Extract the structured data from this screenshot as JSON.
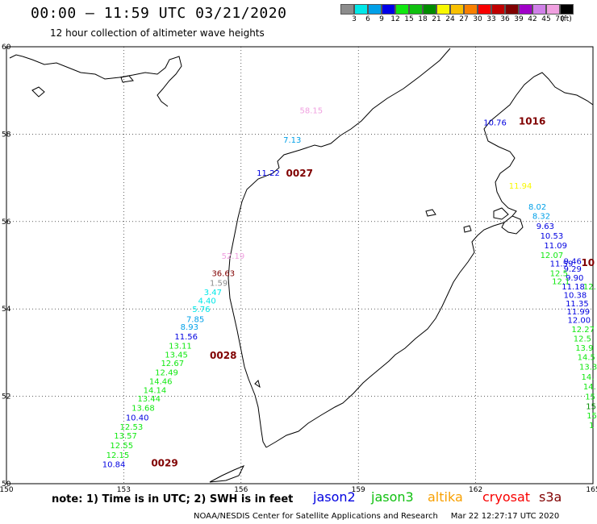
{
  "header": {
    "title": "00:00 – 11:59 UTC 03/21/2020",
    "subtitle": "12 hour collection of altimeter wave heights"
  },
  "legend": {
    "swatches": [
      {
        "color": "#8c8c8c",
        "label": "3"
      },
      {
        "color": "#00e8e8",
        "label": "6"
      },
      {
        "color": "#00a0e8",
        "label": "9"
      },
      {
        "color": "#0000e8",
        "label": "12"
      },
      {
        "color": "#10e810",
        "label": "15"
      },
      {
        "color": "#10c010",
        "label": "18"
      },
      {
        "color": "#008c00",
        "label": "21"
      },
      {
        "color": "#f8f800",
        "label": "24"
      },
      {
        "color": "#f8c000",
        "label": "27"
      },
      {
        "color": "#f88000",
        "label": "30"
      },
      {
        "color": "#f80000",
        "label": "33"
      },
      {
        "color": "#c00000",
        "label": "36"
      },
      {
        "color": "#800000",
        "label": "39"
      },
      {
        "color": "#a000c8",
        "label": "42"
      },
      {
        "color": "#d080e8",
        "label": "45"
      },
      {
        "color": "#f0a0e0",
        "label": "70"
      },
      {
        "color": "#000000",
        "label": "(ft)"
      }
    ]
  },
  "map": {
    "lat_labels": [
      "60",
      "58",
      "56",
      "54",
      "52",
      "50"
    ],
    "lon_labels": [
      "150",
      "153",
      "156",
      "159",
      "162",
      "165"
    ],
    "tracks": [
      {
        "id": "0029",
        "color": "#800000",
        "times": [
          {
            "text": "0028",
            "lon": 156.0,
            "lat": 52.77
          },
          {
            "text": "0029",
            "lon": 153.8,
            "lat": 50.1
          }
        ]
      },
      {
        "id": "jason2",
        "color": "#0000e0",
        "times": []
      }
    ],
    "labels": [
      {
        "text": "58.15",
        "lon": 157.5,
        "lat": 58.48,
        "color": "#f0a0e0"
      },
      {
        "text": "7.13",
        "lon": 157.08,
        "lat": 57.8,
        "color": "#00a0e8"
      },
      {
        "text": "11.22",
        "lon": 156.4,
        "lat": 57.05,
        "color": "#0000e0"
      },
      {
        "text": "0027",
        "lon": 157.15,
        "lat": 57.03,
        "color": "#800000",
        "bold": true,
        "big": true
      },
      {
        "text": "52.19",
        "lon": 155.5,
        "lat": 55.15,
        "color": "#f0a0e0"
      },
      {
        "text": "36.63",
        "lon": 155.25,
        "lat": 54.75,
        "color": "#800000"
      },
      {
        "text": "1.59",
        "lon": 155.2,
        "lat": 54.53,
        "color": "#8c8c8c"
      },
      {
        "text": "3.47",
        "lon": 155.05,
        "lat": 54.32,
        "color": "#00e8e8"
      },
      {
        "text": "4.40",
        "lon": 154.9,
        "lat": 54.12,
        "color": "#00e8e8"
      },
      {
        "text": "5.76",
        "lon": 154.75,
        "lat": 53.93,
        "color": "#00e8e8"
      },
      {
        "text": "7.85",
        "lon": 154.6,
        "lat": 53.7,
        "color": "#00a0e8"
      },
      {
        "text": "8.93",
        "lon": 154.45,
        "lat": 53.52,
        "color": "#00a0e8"
      },
      {
        "text": "11.56",
        "lon": 154.3,
        "lat": 53.3,
        "color": "#0000e0"
      },
      {
        "text": "13.11",
        "lon": 154.15,
        "lat": 53.09,
        "color": "#10e810"
      },
      {
        "text": "13.45",
        "lon": 154.05,
        "lat": 52.89,
        "color": "#10e810"
      },
      {
        "text": "0028",
        "lon": 155.2,
        "lat": 52.86,
        "color": "#800000",
        "bold": true,
        "big": true
      },
      {
        "text": "12.67",
        "lon": 153.95,
        "lat": 52.69,
        "color": "#10e810"
      },
      {
        "text": "12.49",
        "lon": 153.8,
        "lat": 52.48,
        "color": "#10e810"
      },
      {
        "text": "14.46",
        "lon": 153.65,
        "lat": 52.28,
        "color": "#10e810"
      },
      {
        "text": "14.14",
        "lon": 153.5,
        "lat": 52.08,
        "color": "#10e810"
      },
      {
        "text": "13.44",
        "lon": 153.35,
        "lat": 51.88,
        "color": "#10e810"
      },
      {
        "text": "13.68",
        "lon": 153.2,
        "lat": 51.67,
        "color": "#10e810"
      },
      {
        "text": "10.40",
        "lon": 153.05,
        "lat": 51.45,
        "color": "#0000e0"
      },
      {
        "text": "12.53",
        "lon": 152.9,
        "lat": 51.24,
        "color": "#10e810"
      },
      {
        "text": "13.57",
        "lon": 152.75,
        "lat": 51.03,
        "color": "#10e810"
      },
      {
        "text": "12.55",
        "lon": 152.65,
        "lat": 50.81,
        "color": "#10e810"
      },
      {
        "text": "12.15",
        "lon": 152.55,
        "lat": 50.59,
        "color": "#10e810"
      },
      {
        "text": "10.84",
        "lon": 152.45,
        "lat": 50.38,
        "color": "#0000e0"
      },
      {
        "text": "0029",
        "lon": 153.7,
        "lat": 50.4,
        "color": "#800000",
        "bold": true,
        "big": true
      },
      {
        "text": "10.76",
        "lon": 162.2,
        "lat": 58.2,
        "color": "#0000e0"
      },
      {
        "text": "1016",
        "lon": 163.1,
        "lat": 58.22,
        "color": "#800000",
        "bold": true,
        "big": true
      },
      {
        "text": "11.94",
        "lon": 162.85,
        "lat": 56.75,
        "color": "#f8f800"
      },
      {
        "text": "8.02",
        "lon": 163.35,
        "lat": 56.27,
        "color": "#00a0e8"
      },
      {
        "text": "8.32",
        "lon": 163.45,
        "lat": 56.06,
        "color": "#00a0e8"
      },
      {
        "text": "9.63",
        "lon": 163.55,
        "lat": 55.83,
        "color": "#0000e0"
      },
      {
        "text": "10.53",
        "lon": 163.65,
        "lat": 55.61,
        "color": "#0000e0"
      },
      {
        "text": "11.09",
        "lon": 163.75,
        "lat": 55.39,
        "color": "#0000e0"
      },
      {
        "text": "12.07",
        "lon": 163.65,
        "lat": 55.17,
        "color": "#10e810"
      },
      {
        "text": "11.59",
        "lon": 163.9,
        "lat": 54.97,
        "color": "#0000e0"
      },
      {
        "text": "9.46",
        "lon": 164.25,
        "lat": 55.03,
        "color": "#0000e0"
      },
      {
        "text": "10",
        "lon": 164.7,
        "lat": 54.98,
        "color": "#800000",
        "bold": true,
        "big": true
      },
      {
        "text": "9.29",
        "lon": 164.25,
        "lat": 54.85,
        "color": "#0000e0"
      },
      {
        "text": "12.5",
        "lon": 163.9,
        "lat": 54.75,
        "color": "#10e810"
      },
      {
        "text": "9.90",
        "lon": 164.3,
        "lat": 54.65,
        "color": "#0000e0"
      },
      {
        "text": "12.1",
        "lon": 163.95,
        "lat": 54.57,
        "color": "#10e810"
      },
      {
        "text": "11.18",
        "lon": 164.2,
        "lat": 54.45,
        "color": "#0000e0"
      },
      {
        "text": "10.38",
        "lon": 164.25,
        "lat": 54.25,
        "color": "#0000e0"
      },
      {
        "text": "12.",
        "lon": 164.75,
        "lat": 54.45,
        "color": "#10e810"
      },
      {
        "text": "11.35",
        "lon": 164.3,
        "lat": 54.06,
        "color": "#0000e0"
      },
      {
        "text": "11.99",
        "lon": 164.33,
        "lat": 53.87,
        "color": "#0000e0"
      },
      {
        "text": "12.00",
        "lon": 164.35,
        "lat": 53.68,
        "color": "#0000e0"
      },
      {
        "text": "12.27",
        "lon": 164.45,
        "lat": 53.47,
        "color": "#10e810"
      },
      {
        "text": "12.5",
        "lon": 164.5,
        "lat": 53.26,
        "color": "#10e810"
      },
      {
        "text": "13.9",
        "lon": 164.55,
        "lat": 53.04,
        "color": "#10e810"
      },
      {
        "text": "14.5",
        "lon": 164.6,
        "lat": 52.83,
        "color": "#10e810"
      },
      {
        "text": "13.3",
        "lon": 164.65,
        "lat": 52.61,
        "color": "#10e810"
      },
      {
        "text": "14.",
        "lon": 164.7,
        "lat": 52.38,
        "color": "#10e810"
      },
      {
        "text": "14.",
        "lon": 164.75,
        "lat": 52.16,
        "color": "#10e810"
      },
      {
        "text": "15",
        "lon": 164.8,
        "lat": 51.93,
        "color": "#10e810"
      },
      {
        "text": "15",
        "lon": 164.82,
        "lat": 51.71,
        "color": "#008c00"
      },
      {
        "text": "15",
        "lon": 164.84,
        "lat": 51.49,
        "color": "#10e810"
      },
      {
        "text": "1",
        "lon": 164.9,
        "lat": 51.27,
        "color": "#10e810"
      }
    ]
  },
  "footer": {
    "note": "note: 1) Time is in UTC; 2) SWH is in feet",
    "satellites": [
      {
        "name": "jason2",
        "color": "#0000e0"
      },
      {
        "name": "jason3",
        "color": "#10c010"
      },
      {
        "name": "altika",
        "color": "#f8a000"
      },
      {
        "name": "cryosat",
        "color": "#f80000"
      },
      {
        "name": "s3a",
        "color": "#800000"
      }
    ],
    "credit": "NOAA/NESDIS Center for Satellite Applications and Research     Mar 22 12:27:17 UTC 2020"
  }
}
